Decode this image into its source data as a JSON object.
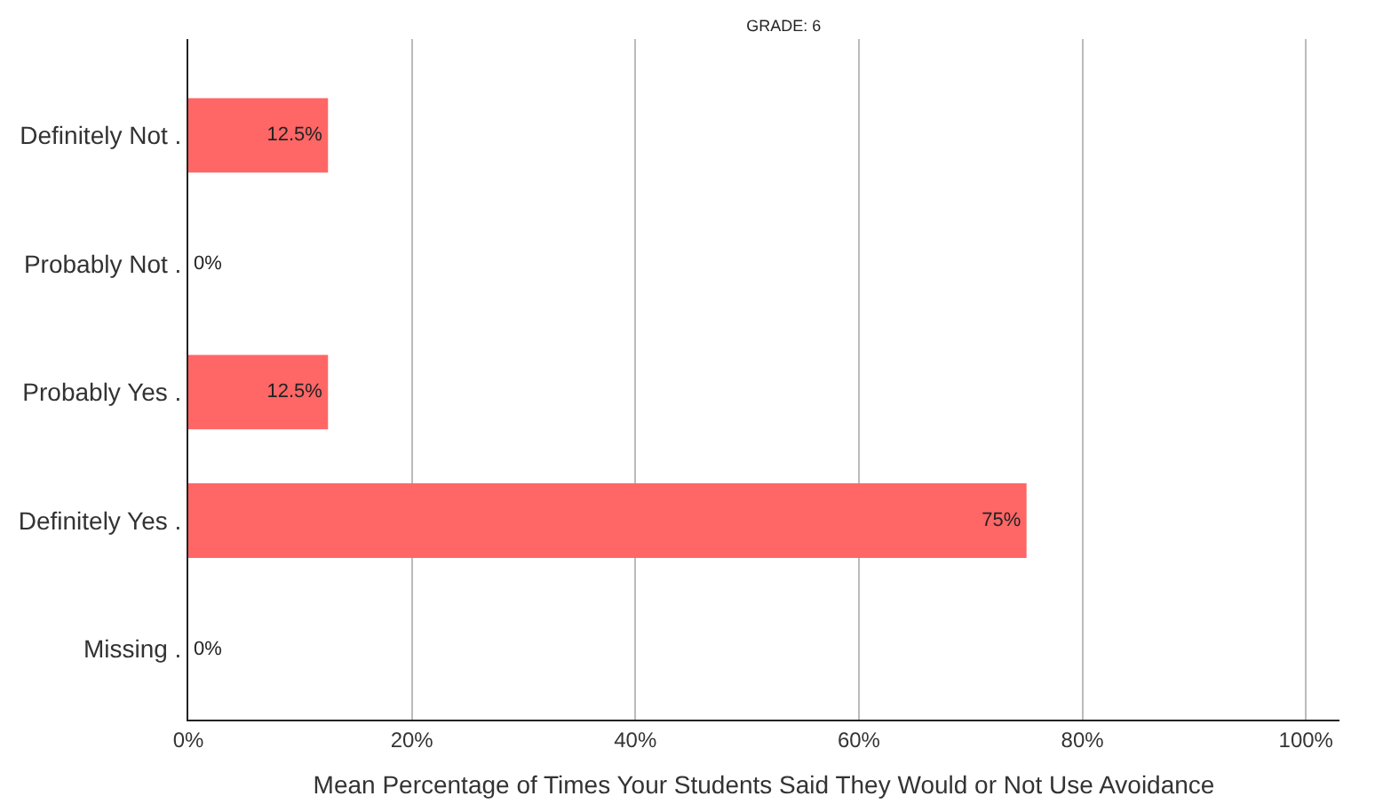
{
  "chart_data": {
    "type": "bar",
    "orientation": "horizontal",
    "title": "GRADE: 6",
    "xlabel": "Mean Percentage of Times Your Students Said They Would or Not Use Avoidance",
    "categories": [
      "Definitely Not .",
      "Probably Not .",
      "Probably Yes .",
      "Definitely Yes .",
      "Missing ."
    ],
    "values": [
      12.5,
      0,
      12.5,
      75,
      0
    ],
    "color": "#ff6666",
    "value_labels": [
      "12.5%",
      "0%",
      "12.5%",
      "75%",
      "0%"
    ],
    "xlim": [
      0,
      103
    ],
    "xticks": [
      {
        "value": 0,
        "label": "0%"
      },
      {
        "value": 20,
        "label": "20%"
      },
      {
        "value": 40,
        "label": "40%"
      },
      {
        "value": 60,
        "label": "60%"
      },
      {
        "value": 80,
        "label": "80%"
      },
      {
        "value": 100,
        "label": "100%"
      }
    ],
    "grid": "x"
  }
}
